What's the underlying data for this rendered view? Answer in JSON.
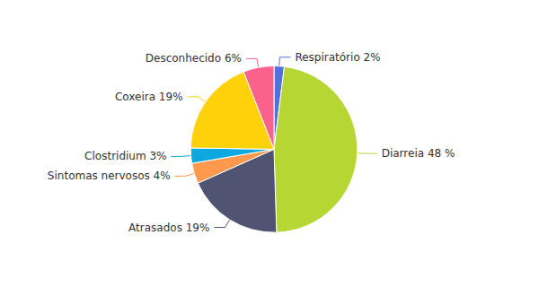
{
  "chart_data": {
    "type": "pie",
    "categories": [
      "Respiratório 2%",
      "Diarreia 48 %",
      "Atrasados 19%",
      "Sintomas nervosos 4%",
      "Clostridium 3%",
      "Coxeira 19%",
      "Desconhecido 6%"
    ],
    "values": [
      2,
      48,
      19,
      4,
      3,
      19,
      6
    ]
  }
}
